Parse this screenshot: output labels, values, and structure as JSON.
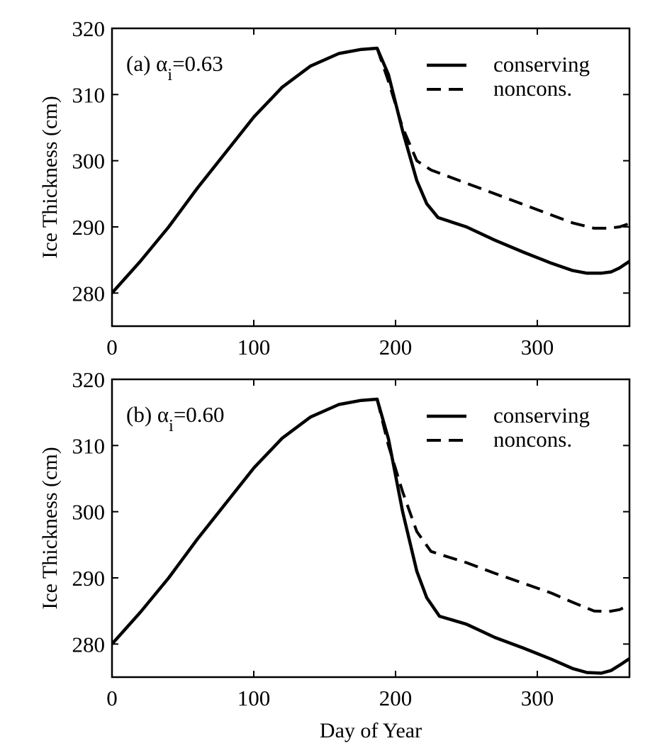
{
  "chart_data": [
    {
      "type": "line",
      "panel_label_prefix": "(b) ",
      "panel_label_prefix_a": "(a) ",
      "label_prefix": "(a) ",
      "alpha_symbol": "α",
      "alpha_subscript": "i",
      "label_value": "=0.63",
      "ylabel": "Ice Thickness (cm)",
      "xlabel": "",
      "xlim": [
        0,
        365
      ],
      "ylim": [
        275,
        320
      ],
      "xticks": [
        "0",
        "100",
        "200",
        "300"
      ],
      "yticks": [
        "280",
        "290",
        "300",
        "310",
        "320"
      ],
      "legend_position": "top-right",
      "series": [
        {
          "name": "conserving",
          "style": "solid",
          "x": [
            0,
            20,
            40,
            60,
            80,
            100,
            120,
            140,
            160,
            175,
            187,
            195,
            205,
            215,
            222,
            230,
            250,
            270,
            290,
            310,
            325,
            335,
            345,
            352,
            358,
            365
          ],
          "y": [
            280.0,
            284.8,
            290.0,
            295.8,
            301.2,
            306.6,
            311.1,
            314.3,
            316.2,
            316.8,
            317.0,
            313.0,
            304.5,
            297.0,
            293.5,
            291.4,
            290.0,
            288.0,
            286.2,
            284.5,
            283.4,
            283.0,
            283.0,
            283.2,
            283.8,
            284.8
          ]
        },
        {
          "name": "noncons.",
          "style": "dashed",
          "x": [
            187,
            195,
            205,
            215,
            225,
            235,
            250,
            270,
            290,
            310,
            325,
            340,
            350,
            358,
            365
          ],
          "y": [
            317.0,
            312.0,
            305.0,
            300.0,
            298.6,
            297.8,
            296.6,
            295.0,
            293.4,
            291.8,
            290.6,
            289.8,
            289.8,
            290.0,
            290.5
          ]
        }
      ]
    },
    {
      "type": "line",
      "label_prefix": "(b) ",
      "alpha_symbol": "α",
      "alpha_subscript": "i",
      "label_value": "=0.60",
      "ylabel": "Ice Thickness (cm)",
      "xlabel": "Day of Year",
      "xlim": [
        0,
        365
      ],
      "ylim": [
        275,
        320
      ],
      "xticks": [
        "0",
        "100",
        "200",
        "300"
      ],
      "yticks": [
        "280",
        "290",
        "300",
        "310",
        "320"
      ],
      "legend_position": "top-right",
      "series": [
        {
          "name": "conserving",
          "style": "solid",
          "x": [
            0,
            20,
            40,
            60,
            80,
            100,
            120,
            140,
            160,
            175,
            187,
            195,
            205,
            215,
            222,
            231,
            250,
            270,
            290,
            310,
            325,
            335,
            345,
            352,
            358,
            365
          ],
          "y": [
            280.0,
            284.8,
            290.0,
            295.8,
            301.2,
            306.6,
            311.1,
            314.3,
            316.2,
            316.8,
            317.0,
            311.0,
            300.0,
            291.0,
            287.0,
            284.2,
            283.0,
            281.0,
            279.4,
            277.7,
            276.3,
            275.7,
            275.6,
            276.0,
            276.8,
            277.8
          ]
        },
        {
          "name": "noncons.",
          "style": "dashed",
          "x": [
            187,
            195,
            205,
            215,
            225,
            235,
            250,
            270,
            290,
            310,
            325,
            340,
            350,
            358,
            365
          ],
          "y": [
            317.0,
            310.0,
            303.0,
            297.0,
            294.0,
            293.3,
            292.3,
            290.7,
            289.2,
            287.7,
            286.3,
            285.0,
            284.9,
            285.2,
            285.9
          ]
        }
      ]
    }
  ]
}
